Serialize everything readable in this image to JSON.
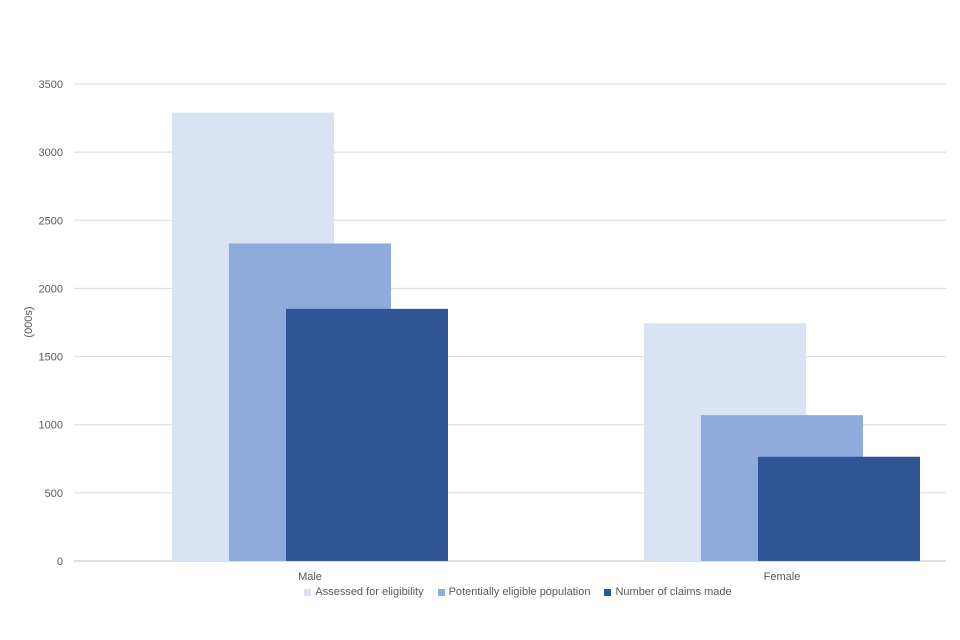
{
  "chart_data": {
    "type": "bar",
    "categories": [
      "Male",
      "Female"
    ],
    "series": [
      {
        "name": "Assessed for eligibility",
        "values": [
          3290,
          1745
        ],
        "color": "#dae3f3"
      },
      {
        "name": "Potentially eligible population",
        "values": [
          2330,
          1070
        ],
        "color": "#8faadc"
      },
      {
        "name": "Number of claims made",
        "values": [
          1850,
          765
        ],
        "color": "#2f5597"
      }
    ],
    "title": "",
    "xlabel": "",
    "ylabel": "(000s)",
    "ylim": [
      0,
      3500
    ],
    "yticks": [
      0,
      500,
      1000,
      1500,
      2000,
      2500,
      3000,
      3500
    ],
    "grid": true,
    "legend_position": "bottom"
  }
}
